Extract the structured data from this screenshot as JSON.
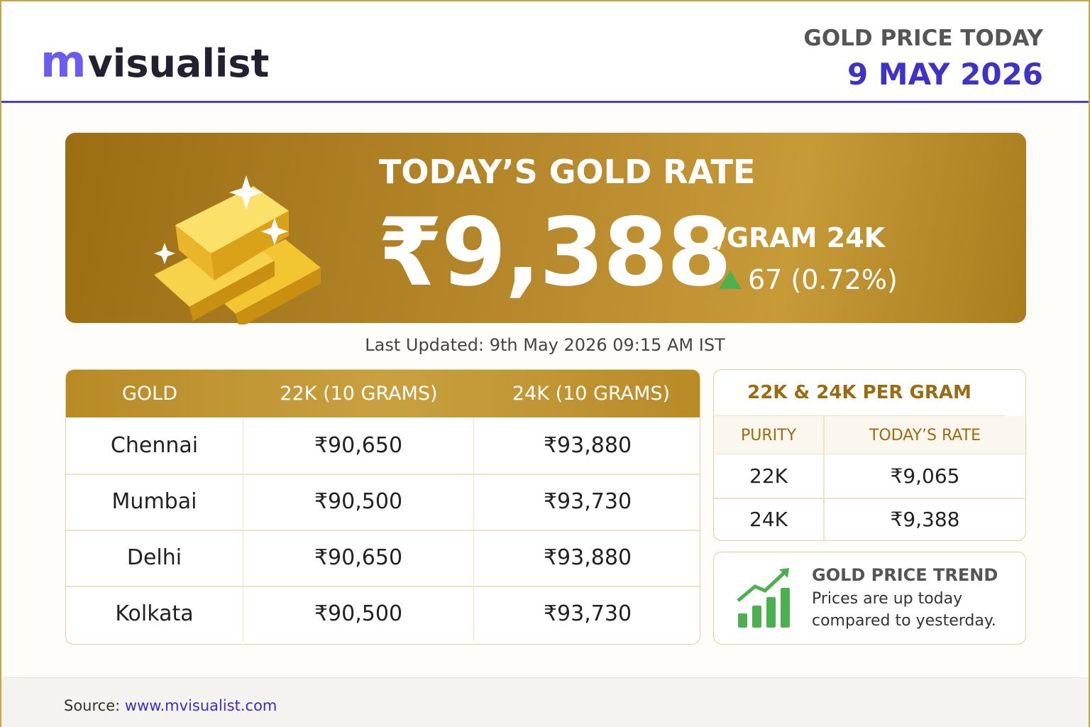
{
  "header": {
    "logo": {
      "mark": "m",
      "text": "visualist"
    },
    "title": "GOLD PRICE TODAY",
    "date": "9 MAY 2026"
  },
  "hero": {
    "title": "TODAY’S GOLD RATE",
    "price": "₹9,388",
    "unit": "/GRAM 24K",
    "change": "67 (0.72%)"
  },
  "last_updated": "Last Updated: 9th May 2026 09:15 AM IST",
  "city_table": {
    "headers": [
      "GOLD",
      "22K (10 GRAMS)",
      "24K (10 GRAMS)"
    ],
    "rows": [
      [
        "Chennai",
        "₹90,650",
        "₹93,880"
      ],
      [
        "Mumbai",
        "₹90,500",
        "₹93,730"
      ],
      [
        "Delhi",
        "₹90,650",
        "₹93,880"
      ],
      [
        "Kolkata",
        "₹90,500",
        "₹93,730"
      ]
    ]
  },
  "per_gram": {
    "title": "22K & 24K PER GRAM",
    "headers": [
      "PURITY",
      "TODAY’S RATE"
    ],
    "rows": [
      [
        "22K",
        "₹9,065"
      ],
      [
        "24K",
        "₹9,388"
      ]
    ]
  },
  "trend": {
    "title": "GOLD PRICE TREND",
    "text": [
      "Prices are up today",
      "compared to yesterday."
    ]
  },
  "footer": {
    "label": "Source:",
    "link": "www.mvisualist.com"
  }
}
